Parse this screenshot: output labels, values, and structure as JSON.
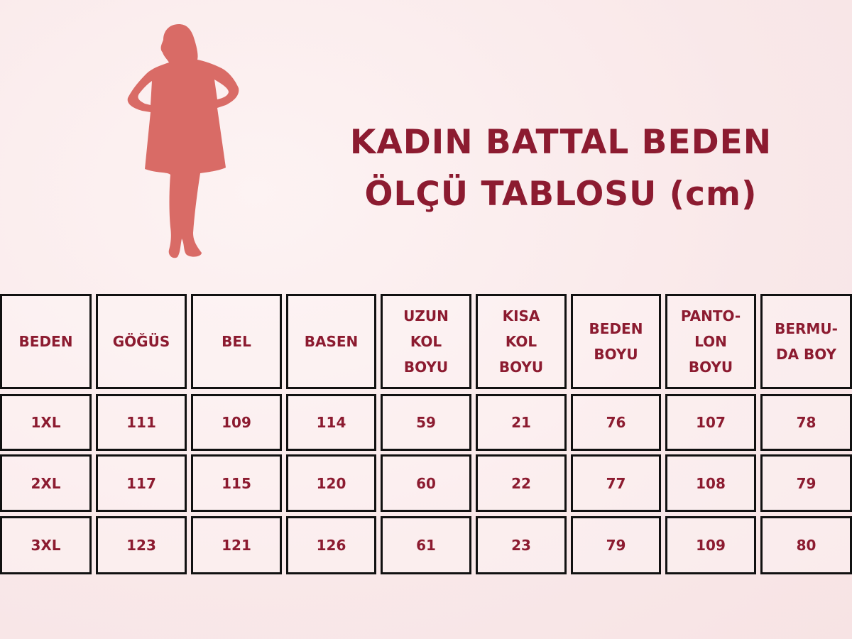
{
  "title": {
    "line1": "KADIN BATTAL BEDEN",
    "line2": "ÖLÇÜ TABLOSU (cm)"
  },
  "colors": {
    "text": "#8c1b30",
    "silhouette": "#d96b66",
    "border": "#111111",
    "background": "#f9e8e9"
  },
  "silhouette_icon": "woman-silhouette-icon",
  "table": {
    "headers": [
      "BEDEN",
      "GÖĞÜS",
      "BEL",
      "BASEN",
      "UZUN\nKOL\nBOYU",
      "KISA\nKOL\nBOYU",
      "BEDEN\nBOYU",
      "PANTO-\nLON\nBOYU",
      "BERMU-\nDA BOY"
    ],
    "rows": [
      [
        "1XL",
        "111",
        "109",
        "114",
        "59",
        "21",
        "76",
        "107",
        "78"
      ],
      [
        "2XL",
        "117",
        "115",
        "120",
        "60",
        "22",
        "77",
        "108",
        "79"
      ],
      [
        "3XL",
        "123",
        "121",
        "126",
        "61",
        "23",
        "79",
        "109",
        "80"
      ]
    ]
  }
}
